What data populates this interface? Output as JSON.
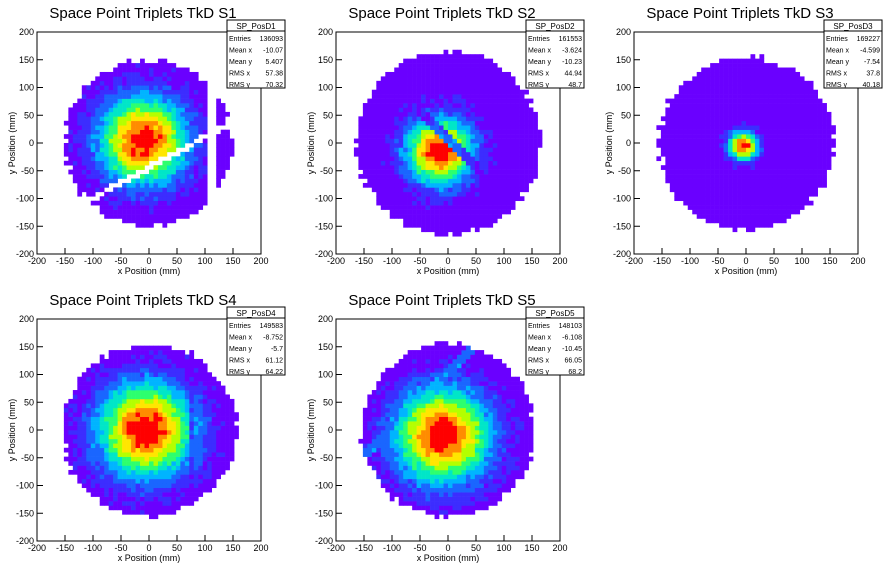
{
  "chart_data": [
    {
      "id": "S1",
      "type": "heatmap",
      "title": "Space Point Triplets TkD S1",
      "xlabel": "x Position (mm)",
      "ylabel": "y Position (mm)",
      "xlim": [
        -200,
        200
      ],
      "ylim": [
        -200,
        200
      ],
      "xticks": [
        "-200",
        "-150",
        "-100",
        "-50",
        "0",
        "50",
        "100",
        "150",
        "200"
      ],
      "yticks": [
        "200",
        "150",
        "100",
        "50",
        "0",
        "-50",
        "-100",
        "-150",
        "-200"
      ],
      "stats": {
        "name": "SP_PosD1",
        "rows": [
          {
            "label": "Entries",
            "value": "136093"
          },
          {
            "label": "Mean x",
            "value": "-10.07"
          },
          {
            "label": "Mean y",
            "value": "5.407"
          },
          {
            "label": "RMS x",
            "value": "57.38"
          },
          {
            "label": "RMS y",
            "value": "70.32"
          }
        ]
      },
      "pattern": {
        "radius": 150,
        "sigma": 55,
        "peak_x": -10,
        "peak_y": 5,
        "gap_band": true,
        "gap_angle": 30,
        "gap_offset": -40,
        "side_cut": true
      }
    },
    {
      "id": "S2",
      "type": "heatmap",
      "title": "Space Point Triplets TkD S2",
      "xlabel": "x Position (mm)",
      "ylabel": "y Position (mm)",
      "xlim": [
        -200,
        200
      ],
      "ylim": [
        -200,
        200
      ],
      "xticks": [
        "-200",
        "-150",
        "-100",
        "-50",
        "0",
        "50",
        "100",
        "150",
        "200"
      ],
      "yticks": [
        "200",
        "150",
        "100",
        "50",
        "0",
        "-50",
        "-100",
        "-150",
        "-200"
      ],
      "stats": {
        "name": "SP_PosD2",
        "rows": [
          {
            "label": "Entries",
            "value": "161553"
          },
          {
            "label": "Mean x",
            "value": "-3.624"
          },
          {
            "label": "Mean y",
            "value": "-10.23"
          },
          {
            "label": "RMS x",
            "value": "44.94"
          },
          {
            "label": "RMS y",
            "value": "48.7"
          }
        ]
      },
      "pattern": {
        "radius": 165,
        "sigma": 42,
        "peak_x": -15,
        "peak_y": -15,
        "stripe": true
      }
    },
    {
      "id": "S3",
      "type": "heatmap",
      "title": "Space Point Triplets TkD S3",
      "xlabel": "x Position (mm)",
      "ylabel": "y Position (mm)",
      "xlim": [
        -200,
        200
      ],
      "ylim": [
        -200,
        200
      ],
      "xticks": [
        "-200",
        "-150",
        "-100",
        "-50",
        "0",
        "50",
        "100",
        "150",
        "200"
      ],
      "yticks": [
        "200",
        "150",
        "100",
        "50",
        "0",
        "-50",
        "-100",
        "-150",
        "-200"
      ],
      "stats": {
        "name": "SP_PosD3",
        "rows": [
          {
            "label": "Entries",
            "value": "169227"
          },
          {
            "label": "Mean x",
            "value": "-4.599"
          },
          {
            "label": "Mean y",
            "value": "-7.54"
          },
          {
            "label": "RMS x",
            "value": "37.8"
          },
          {
            "label": "RMS y",
            "value": "40.18"
          }
        ]
      },
      "pattern": {
        "radius": 155,
        "sigma": 18,
        "peak_x": -5,
        "peak_y": -5
      }
    },
    {
      "id": "S4",
      "type": "heatmap",
      "title": "Space Point Triplets TkD S4",
      "xlabel": "x Position (mm)",
      "ylabel": "y Position (mm)",
      "xlim": [
        -200,
        200
      ],
      "ylim": [
        -200,
        200
      ],
      "xticks": [
        "-200",
        "-150",
        "-100",
        "-50",
        "0",
        "50",
        "100",
        "150",
        "200"
      ],
      "yticks": [
        "200",
        "150",
        "100",
        "50",
        "0",
        "-50",
        "-100",
        "-150",
        "-200"
      ],
      "stats": {
        "name": "SP_PosD4",
        "rows": [
          {
            "label": "Entries",
            "value": "149583"
          },
          {
            "label": "Mean x",
            "value": "-8.752"
          },
          {
            "label": "Mean y",
            "value": "-5.7"
          },
          {
            "label": "RMS x",
            "value": "61.12"
          },
          {
            "label": "RMS y",
            "value": "64.22"
          }
        ]
      },
      "pattern": {
        "radius": 155,
        "sigma": 60,
        "peak_x": -5,
        "peak_y": 0,
        "vline": 75
      }
    },
    {
      "id": "S5",
      "type": "heatmap",
      "title": "Space Point Triplets TkD S5",
      "xlabel": "x Position (mm)",
      "ylabel": "y Position (mm)",
      "xlim": [
        -200,
        200
      ],
      "ylim": [
        -200,
        200
      ],
      "xticks": [
        "-200",
        "-150",
        "-100",
        "-50",
        "0",
        "50",
        "100",
        "150",
        "200"
      ],
      "yticks": [
        "200",
        "150",
        "100",
        "50",
        "0",
        "-50",
        "-100",
        "-150",
        "-200"
      ],
      "stats": {
        "name": "SP_PosD5",
        "rows": [
          {
            "label": "Entries",
            "value": "148103"
          },
          {
            "label": "Mean x",
            "value": "-6.108"
          },
          {
            "label": "Mean y",
            "value": "-10.45"
          },
          {
            "label": "RMS x",
            "value": "66.05"
          },
          {
            "label": "RMS y",
            "value": "68.2"
          }
        ]
      },
      "pattern": {
        "radius": 155,
        "sigma": 60,
        "peak_x": -10,
        "peak_y": -10,
        "diag_band": true
      }
    }
  ],
  "colors": {
    "palette": [
      "#6a00ff",
      "#3c2dff",
      "#1a66ff",
      "#00b4ff",
      "#00e6c8",
      "#2dff6e",
      "#b4ff00",
      "#ffe600",
      "#ff8c00",
      "#ff0000"
    ]
  }
}
